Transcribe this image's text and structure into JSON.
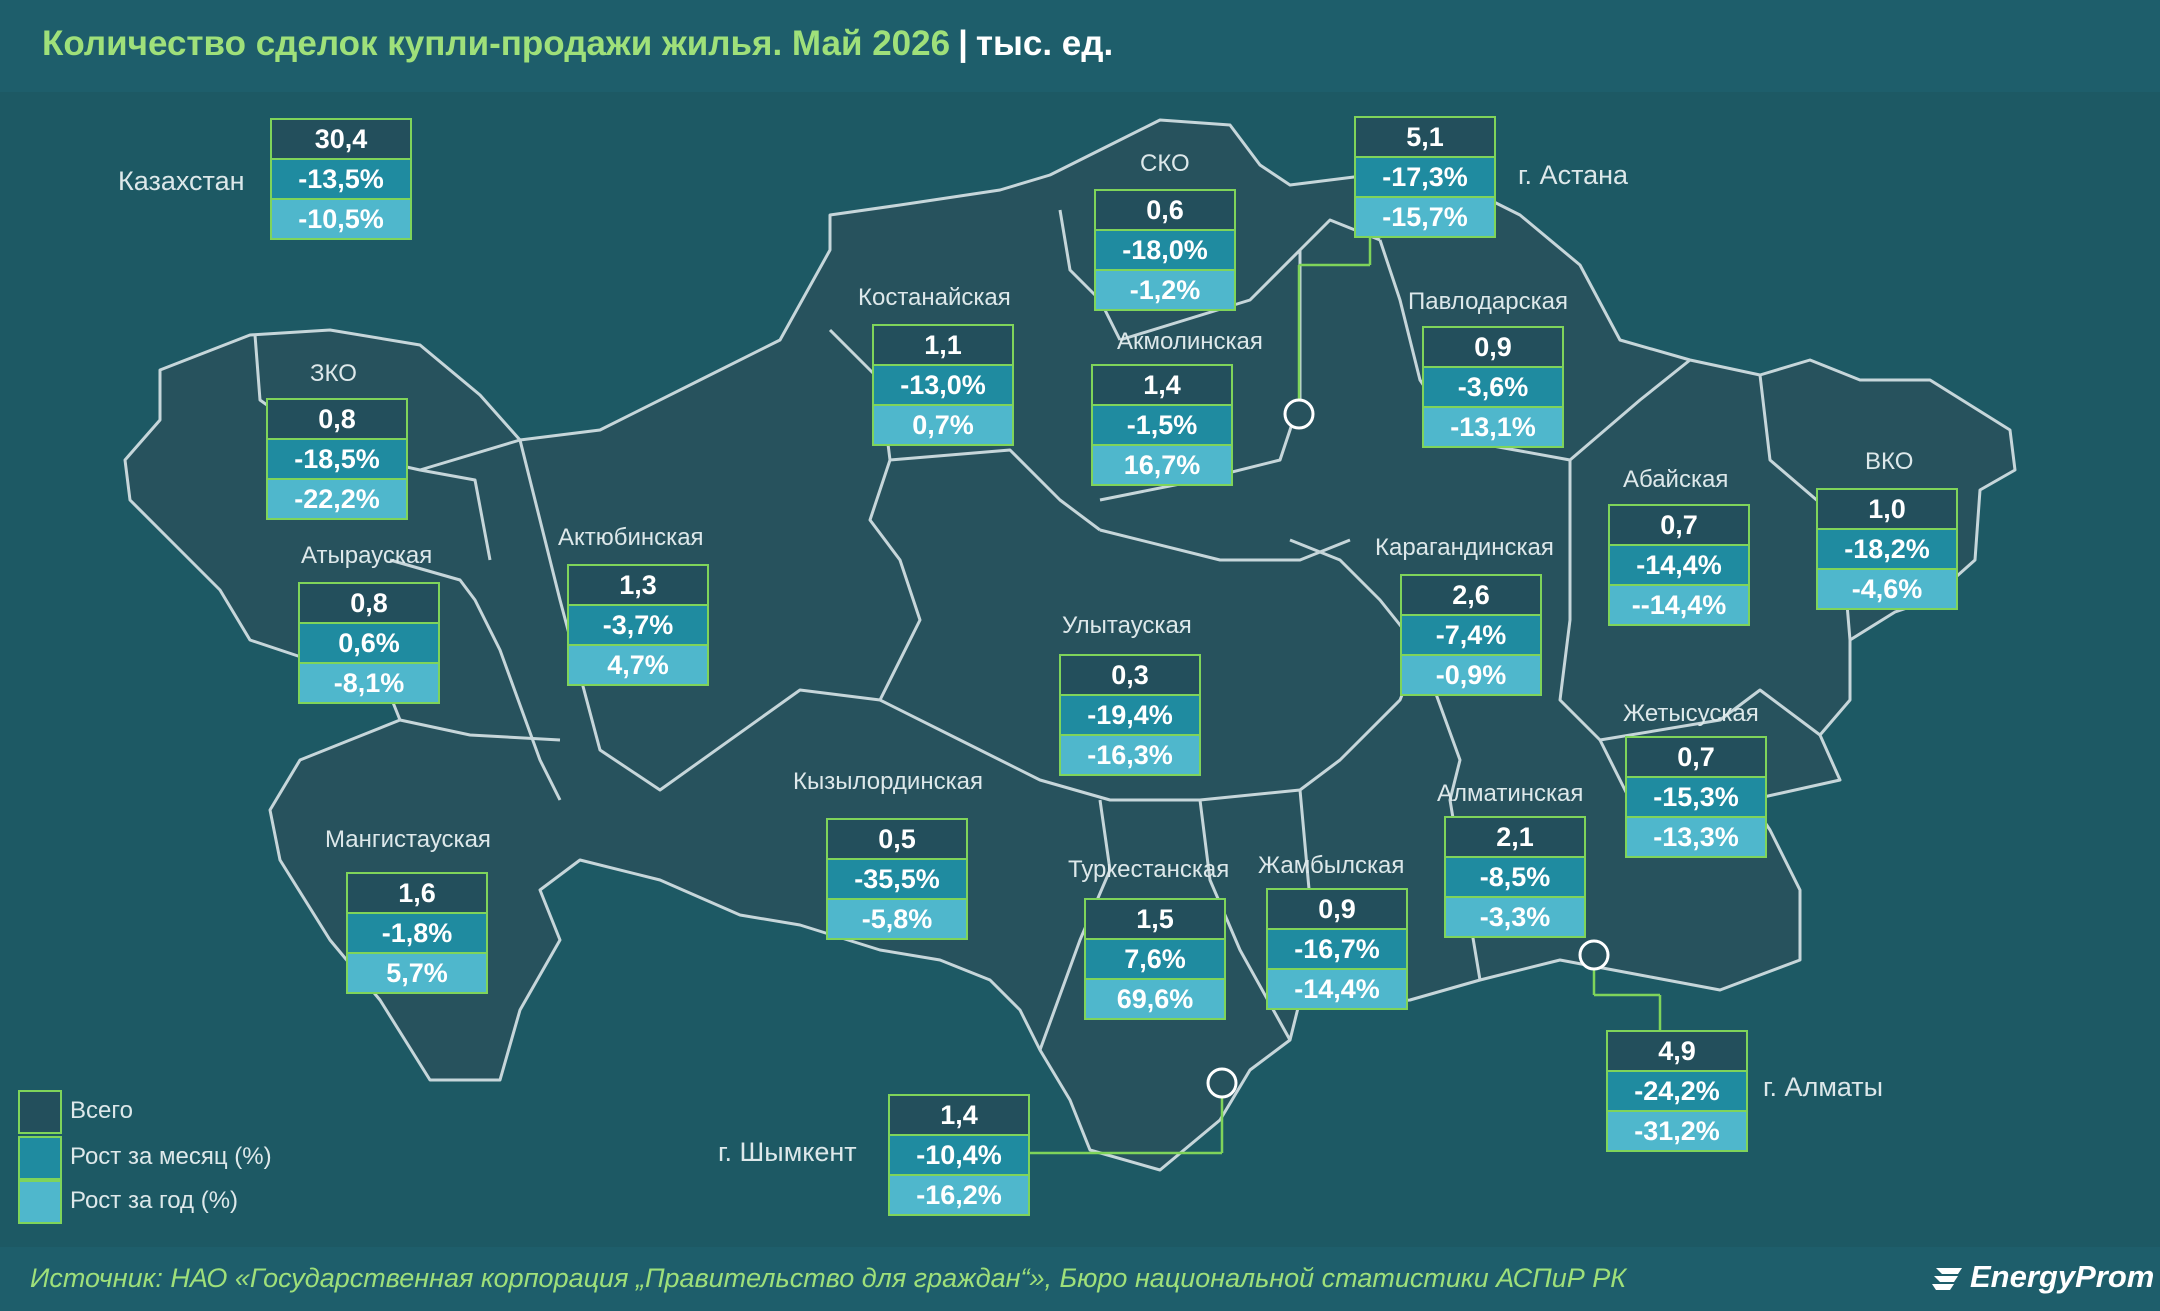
{
  "header": {
    "title": "Количество сделок купли-продажи жилья. Май 2026",
    "separator": "|",
    "unit": "тыс. ед."
  },
  "colors": {
    "total": "#234f5c",
    "month": "#1f8ba0",
    "year": "#4fb7cc",
    "border": "#7fd45a",
    "title": "#9fe07a"
  },
  "regions": {
    "kazakhstan": {
      "name": "Казахстан",
      "total": "30,4",
      "month": "-13,5%",
      "year": "-10,5%"
    },
    "astana": {
      "name": "г. Астана",
      "total": "5,1",
      "month": "-17,3%",
      "year": "-15,7%"
    },
    "sko": {
      "name": "СКО",
      "total": "0,6",
      "month": "-18,0%",
      "year": "-1,2%"
    },
    "kostanay": {
      "name": "Костанайская",
      "total": "1,1",
      "month": "-13,0%",
      "year": "0,7%"
    },
    "akmola": {
      "name": "Акмолинская",
      "total": "1,4",
      "month": "-1,5%",
      "year": "16,7%"
    },
    "pavlodar": {
      "name": "Павлодарская",
      "total": "0,9",
      "month": "-3,6%",
      "year": "-13,1%"
    },
    "zko": {
      "name": "ЗКО",
      "total": "0,8",
      "month": "-18,5%",
      "year": "-22,2%"
    },
    "abay": {
      "name": "Абайская",
      "total": "0,7",
      "month": "-14,4%",
      "year": "--14,4%"
    },
    "vko": {
      "name": "ВКО",
      "total": "1,0",
      "month": "-18,2%",
      "year": "-4,6%"
    },
    "atyrau": {
      "name": "Атырауская",
      "total": "0,8",
      "month": "0,6%",
      "year": "-8,1%"
    },
    "aktobe": {
      "name": "Актюбинская",
      "total": "1,3",
      "month": "-3,7%",
      "year": "4,7%"
    },
    "karaganda": {
      "name": "Карагандинская",
      "total": "2,6",
      "month": "-7,4%",
      "year": "-0,9%"
    },
    "ulytau": {
      "name": "Улытауская",
      "total": "0,3",
      "month": "-19,4%",
      "year": "-16,3%"
    },
    "zhetysu": {
      "name": "Жетысуская",
      "total": "0,7",
      "month": "-15,3%",
      "year": "-13,3%"
    },
    "kyzylorda": {
      "name": "Кызылординская",
      "total": "0,5",
      "month": "-35,5%",
      "year": "-5,8%"
    },
    "almaty_reg": {
      "name": "Алматинская",
      "total": "2,1",
      "month": "-8,5%",
      "year": "-3,3%"
    },
    "mangystau": {
      "name": "Мангистауская",
      "total": "1,6",
      "month": "-1,8%",
      "year": "5,7%"
    },
    "turkestan": {
      "name": "Туркестанская",
      "total": "1,5",
      "month": "7,6%",
      "year": "69,6%"
    },
    "zhambyl": {
      "name": "Жамбылская",
      "total": "0,9",
      "month": "-16,7%",
      "year": "-14,4%"
    },
    "almaty": {
      "name": "г. Алматы",
      "total": "4,9",
      "month": "-24,2%",
      "year": "-31,2%"
    },
    "shymkent": {
      "name": "г. Шымкент",
      "total": "1,4",
      "month": "-10,4%",
      "year": "-16,2%"
    }
  },
  "legend": {
    "total": "Всего",
    "month": "Рост за месяц (%)",
    "year": "Рост за год (%)"
  },
  "footer": {
    "source": "Источник: НАО «Государственная корпорация „Правительство для граждан“», Бюро национальной статистики АСПиР РК",
    "logo": "EnergyProm"
  }
}
